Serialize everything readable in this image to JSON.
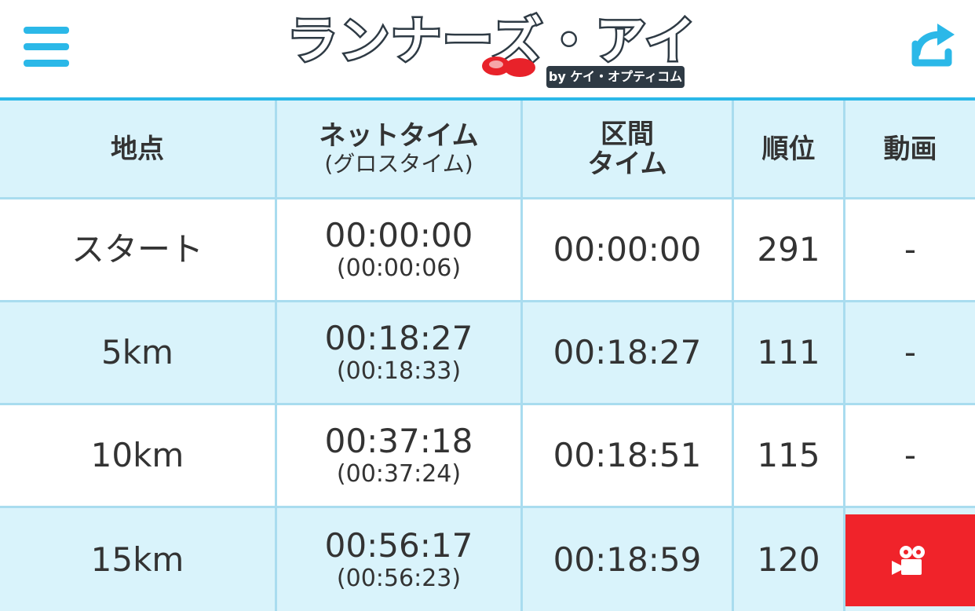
{
  "header": {
    "logo_text": "ランナーズ・アイ",
    "logo_sub": "by ケイ・オプティコム",
    "colors": {
      "accent": "#2bb8e8",
      "logo_dark": "#2e3a44",
      "logo_red": "#e8222a"
    },
    "menu_icon": "hamburger-icon",
    "refresh_icon": "share-arrow-icon"
  },
  "table": {
    "colors": {
      "header_bg": "#d9f3fb",
      "border": "#a9dcef",
      "video_bg": "#f0232a"
    },
    "columns": {
      "point": "地点",
      "net_time": "ネットタイム",
      "gross_time": "(グロスタイム)",
      "split_line1": "区間",
      "split_line2": "タイム",
      "rank": "順位",
      "video": "動画"
    },
    "rows": [
      {
        "point": "スタート",
        "net": "00:00:00",
        "gross": "(00:00:06)",
        "split": "00:00:00",
        "rank": "291",
        "video": "-"
      },
      {
        "point": "5km",
        "net": "00:18:27",
        "gross": "(00:18:33)",
        "split": "00:18:27",
        "rank": "111",
        "video": "-"
      },
      {
        "point": "10km",
        "net": "00:37:18",
        "gross": "(00:37:24)",
        "split": "00:18:51",
        "rank": "115",
        "video": "-"
      },
      {
        "point": "15km",
        "net": "00:56:17",
        "gross": "(00:56:23)",
        "split": "00:18:59",
        "rank": "120",
        "video_icon": "video-camera-icon"
      }
    ]
  }
}
